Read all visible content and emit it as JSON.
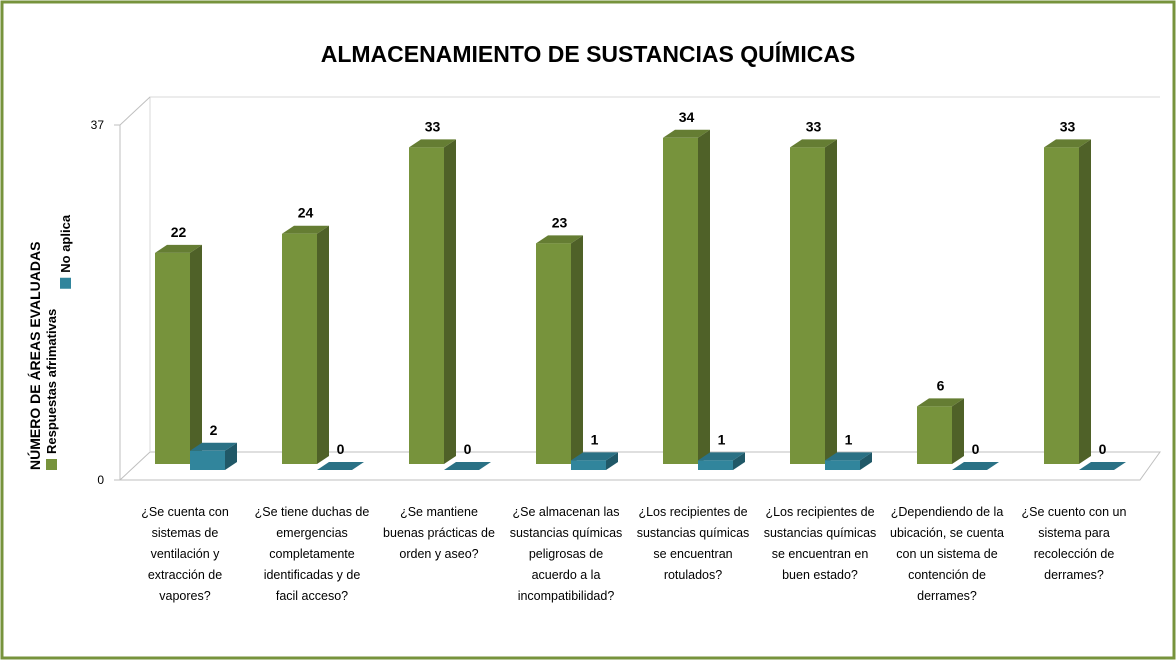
{
  "chart_data": {
    "type": "bar3d",
    "title": "ALMACENAMIENTO DE SUSTANCIAS QUÍMICAS",
    "y_label": "NÚMERO DE ÁREAS  EVALUADAS",
    "categories": [
      "¿Se cuenta con sistemas de ventilación y extracción de vapores?",
      "¿Se tiene duchas de emergencias completamente identificadas y de facil acceso?",
      "¿Se mantiene buenas prácticas de orden y aseo?",
      "¿Se almacenan las sustancias químicas peligrosas de acuerdo a la incompatibilidad?",
      "¿Los recipientes de sustancias químicas se encuentran rotulados?",
      "¿Los recipientes de sustancias químicas se encuentran en buen estado?",
      "¿Dependiendo de la ubicación, se cuenta con un sistema de contención de derrames?",
      "¿Se cuento con un sistema para recolección de derrames?"
    ],
    "series": [
      {
        "name": "Respuestas afrimativas",
        "color": "#77933c",
        "values": [
          22,
          24,
          33,
          23,
          34,
          33,
          6,
          33
        ]
      },
      {
        "name": "No aplica",
        "color": "#31859c",
        "values": [
          2,
          0,
          0,
          1,
          1,
          1,
          0,
          0
        ]
      }
    ],
    "ylim": [
      0,
      37
    ],
    "yticks": [
      0,
      37
    ],
    "legend": "left"
  }
}
